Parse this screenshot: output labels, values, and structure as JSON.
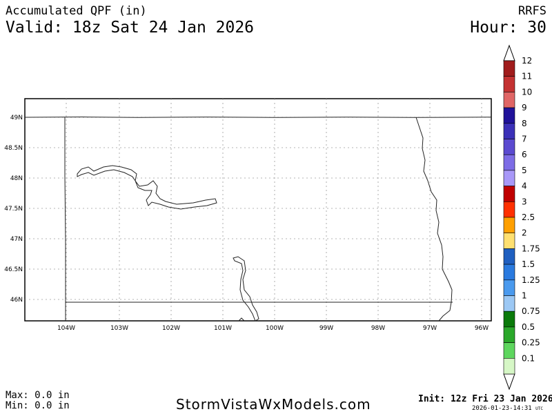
{
  "header": {
    "title": "Accumulated QPF (in)",
    "valid": "Valid: 18z Sat 24 Jan 2026",
    "model": "RRFS",
    "hour": "Hour: 30"
  },
  "footer": {
    "max": "Max: 0.0 in",
    "min": "Min: 0.0 in",
    "site": "StormVistaWxModels.com",
    "init": "Init: 12z Fri 23 Jan 2026",
    "timestamp": "2026-01-23-14:31",
    "timestamp_unit": "UTC"
  },
  "map": {
    "lat_labels": [
      "49N",
      "48.5N",
      "48N",
      "47.5N",
      "47N",
      "46.5N",
      "46N"
    ],
    "lon_labels": [
      "104W",
      "103W",
      "102W",
      "101W",
      "100W",
      "99W",
      "98W",
      "97W",
      "96W"
    ]
  },
  "colorbar": {
    "labels": [
      "12",
      "11",
      "10",
      "9",
      "8",
      "7",
      "6",
      "5",
      "4",
      "3",
      "2.5",
      "2",
      "1.75",
      "1.5",
      "1.25",
      "1",
      "0.75",
      "0.5",
      "0.25",
      "0.1"
    ],
    "colors": [
      "#a01c1c",
      "#c43232",
      "#e06666",
      "#20129a",
      "#3b30b8",
      "#5b4ad0",
      "#7d6ce6",
      "#a898f8",
      "#c00000",
      "#ff3000",
      "#ffa000",
      "#ffe070",
      "#1f5fc0",
      "#2a7adf",
      "#4a9aee",
      "#9cc8f4",
      "#0a7a0a",
      "#2aa82a",
      "#5ed65e",
      "#d6f7c6"
    ]
  }
}
